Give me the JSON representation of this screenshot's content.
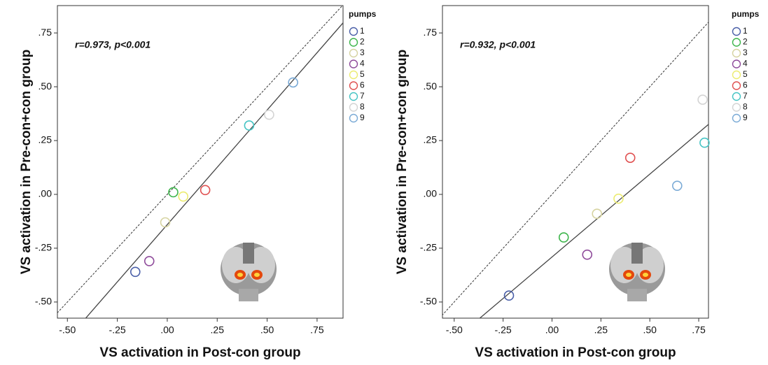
{
  "chart_data": [
    {
      "type": "scatter",
      "annotation": "r=0.973, p<0.001",
      "x_label": "VS activation in Post-con group",
      "y_label": "VS activation in Pre-con+con group",
      "legend_title": "pumps",
      "xlim": [
        -0.55,
        0.88
      ],
      "ylim": [
        -0.575,
        0.877
      ],
      "xticks": [
        {
          "value": -0.5,
          "label": "-.50"
        },
        {
          "value": -0.25,
          "label": "-.25"
        },
        {
          "value": 0,
          "label": ".00"
        },
        {
          "value": 0.25,
          "label": ".25"
        },
        {
          "value": 0.5,
          "label": ".50"
        },
        {
          "value": 0.75,
          "label": ".75"
        }
      ],
      "yticks": [
        {
          "value": -0.5,
          "label": "-.50"
        },
        {
          "value": -0.25,
          "label": "-.25"
        },
        {
          "value": 0,
          "label": ".00"
        },
        {
          "value": 0.25,
          "label": ".25"
        },
        {
          "value": 0.5,
          "label": ".50"
        },
        {
          "value": 0.75,
          "label": ".75"
        }
      ],
      "series": [
        {
          "name": "1",
          "color": "#4a5fa8",
          "x": [
            -0.16
          ],
          "values": [
            -0.36
          ]
        },
        {
          "name": "2",
          "color": "#3cb54a",
          "x": [
            0.03
          ],
          "values": [
            0.01
          ]
        },
        {
          "name": "3",
          "color": "#d6d3a0",
          "x": [
            -0.01
          ],
          "values": [
            -0.13
          ]
        },
        {
          "name": "4",
          "color": "#8e4a9a",
          "x": [
            -0.09
          ],
          "values": [
            -0.31
          ]
        },
        {
          "name": "5",
          "color": "#ecec70",
          "x": [
            0.08
          ],
          "values": [
            -0.01
          ]
        },
        {
          "name": "6",
          "color": "#e05050",
          "x": [
            0.19
          ],
          "values": [
            0.02
          ]
        },
        {
          "name": "7",
          "color": "#45c4c4",
          "x": [
            0.41
          ],
          "values": [
            0.32
          ]
        },
        {
          "name": "8",
          "color": "#d4d4d4",
          "x": [
            0.51
          ],
          "values": [
            0.37
          ]
        },
        {
          "name": "9",
          "color": "#7aaad6",
          "x": [
            0.63
          ],
          "values": [
            0.52
          ]
        }
      ]
    },
    {
      "type": "scatter",
      "annotation": "r=0.932, p<0.001",
      "x_label": "VS activation in Post-con group",
      "y_label": "VS activation in Pre-con+con group",
      "legend_title": "pumps",
      "xlim": [
        -0.56,
        0.8
      ],
      "ylim": [
        -0.575,
        0.877
      ],
      "xticks": [
        {
          "value": -0.5,
          "label": "-.50"
        },
        {
          "value": -0.25,
          "label": "-.25"
        },
        {
          "value": 0,
          "label": ".00"
        },
        {
          "value": 0.25,
          "label": ".25"
        },
        {
          "value": 0.5,
          "label": ".50"
        },
        {
          "value": 0.75,
          "label": ".75"
        }
      ],
      "yticks": [
        {
          "value": -0.5,
          "label": "-.50"
        },
        {
          "value": -0.25,
          "label": "-.25"
        },
        {
          "value": 0,
          "label": ".00"
        },
        {
          "value": 0.25,
          "label": ".25"
        },
        {
          "value": 0.5,
          "label": ".50"
        },
        {
          "value": 0.75,
          "label": ".75"
        }
      ],
      "series": [
        {
          "name": "1",
          "color": "#4a5fa8",
          "x": [
            -0.22
          ],
          "values": [
            -0.47
          ]
        },
        {
          "name": "2",
          "color": "#3cb54a",
          "x": [
            0.06
          ],
          "values": [
            -0.2
          ]
        },
        {
          "name": "3",
          "color": "#d6d3a0",
          "x": [
            0.23
          ],
          "values": [
            -0.09
          ]
        },
        {
          "name": "4",
          "color": "#8e4a9a",
          "x": [
            0.18
          ],
          "values": [
            -0.28
          ]
        },
        {
          "name": "5",
          "color": "#ecec70",
          "x": [
            0.34
          ],
          "values": [
            -0.02
          ]
        },
        {
          "name": "6",
          "color": "#e05050",
          "x": [
            0.4
          ],
          "values": [
            0.17
          ]
        },
        {
          "name": "7",
          "color": "#45c4c4",
          "x": [
            0.78
          ],
          "values": [
            0.24
          ]
        },
        {
          "name": "8",
          "color": "#d4d4d4",
          "x": [
            0.77
          ],
          "values": [
            0.44
          ]
        },
        {
          "name": "9",
          "color": "#7aaad6",
          "x": [
            0.64
          ],
          "values": [
            0.04
          ]
        }
      ]
    }
  ]
}
